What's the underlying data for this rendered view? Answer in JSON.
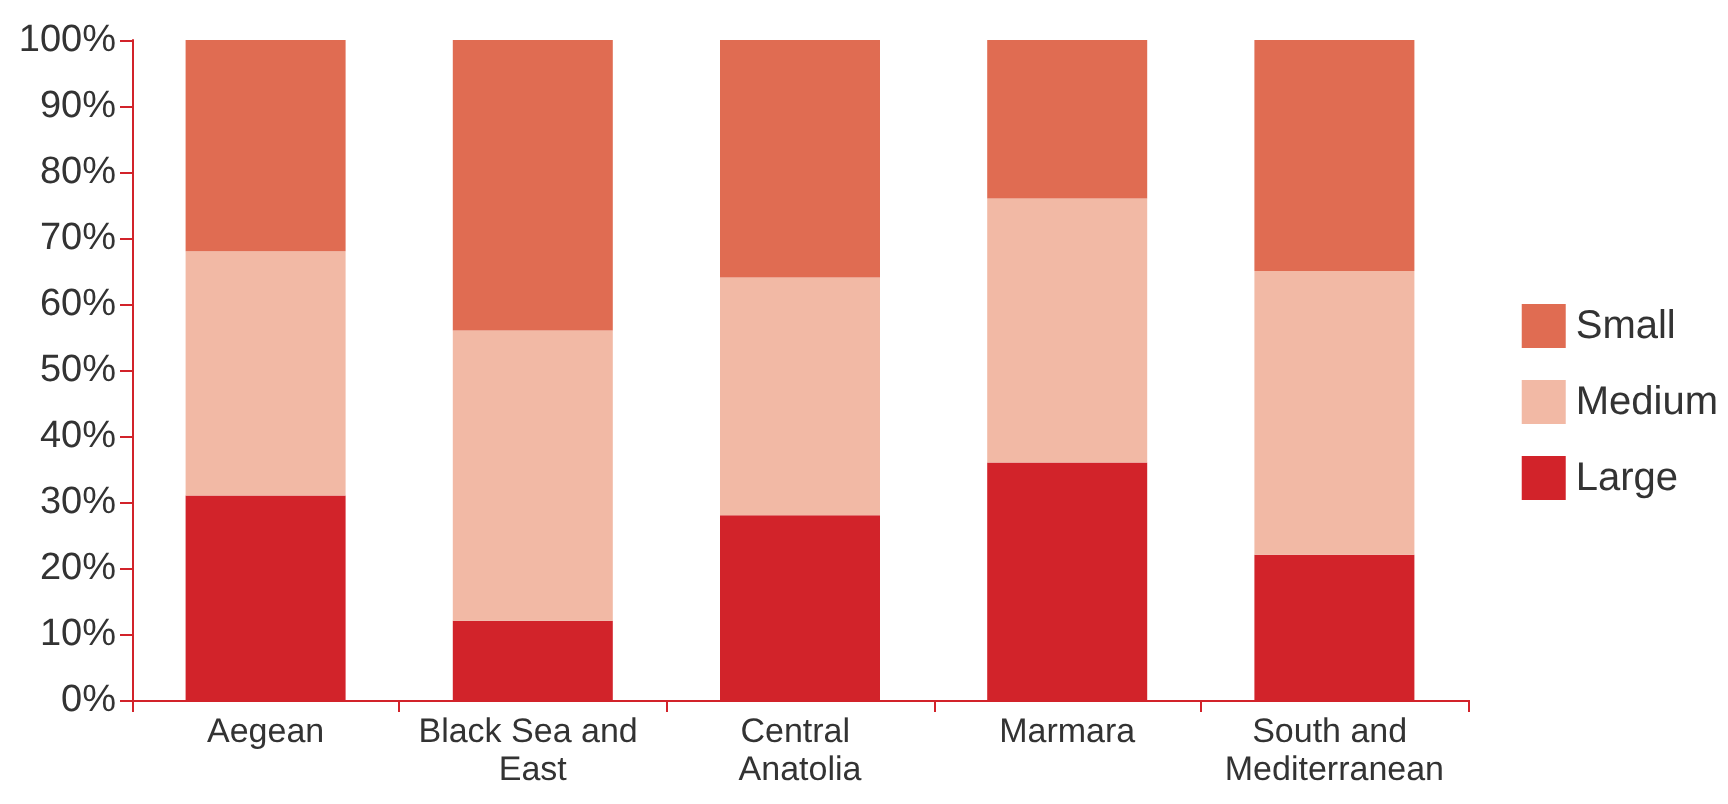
{
  "chart_data": {
    "type": "bar",
    "stacked": true,
    "categories": [
      "Aegean",
      "Black Sea and East",
      "Central Anatolia",
      "Marmara",
      "South and Mediterranean"
    ],
    "series": [
      {
        "name": "Large",
        "color": "#d2232a",
        "values": [
          31,
          12,
          28,
          36,
          22
        ]
      },
      {
        "name": "Medium",
        "color": "#f2b9a5",
        "values": [
          37,
          44,
          36,
          40,
          43
        ]
      },
      {
        "name": "Small",
        "color": "#e06c52",
        "values": [
          32,
          44,
          36,
          24,
          35
        ]
      }
    ],
    "ylim": [
      0,
      100
    ],
    "yticks": [
      {
        "value": 0,
        "label": "0%"
      },
      {
        "value": 10,
        "label": "10%"
      },
      {
        "value": 20,
        "label": "20%"
      },
      {
        "value": 30,
        "label": "30%"
      },
      {
        "value": 40,
        "label": "40%"
      },
      {
        "value": 50,
        "label": "50%"
      },
      {
        "value": 60,
        "label": "60%"
      },
      {
        "value": 70,
        "label": "70%"
      },
      {
        "value": 80,
        "label": "80%"
      },
      {
        "value": 90,
        "label": "90%"
      },
      {
        "value": 100,
        "label": "100%"
      }
    ],
    "grid": false,
    "legend": "right"
  }
}
